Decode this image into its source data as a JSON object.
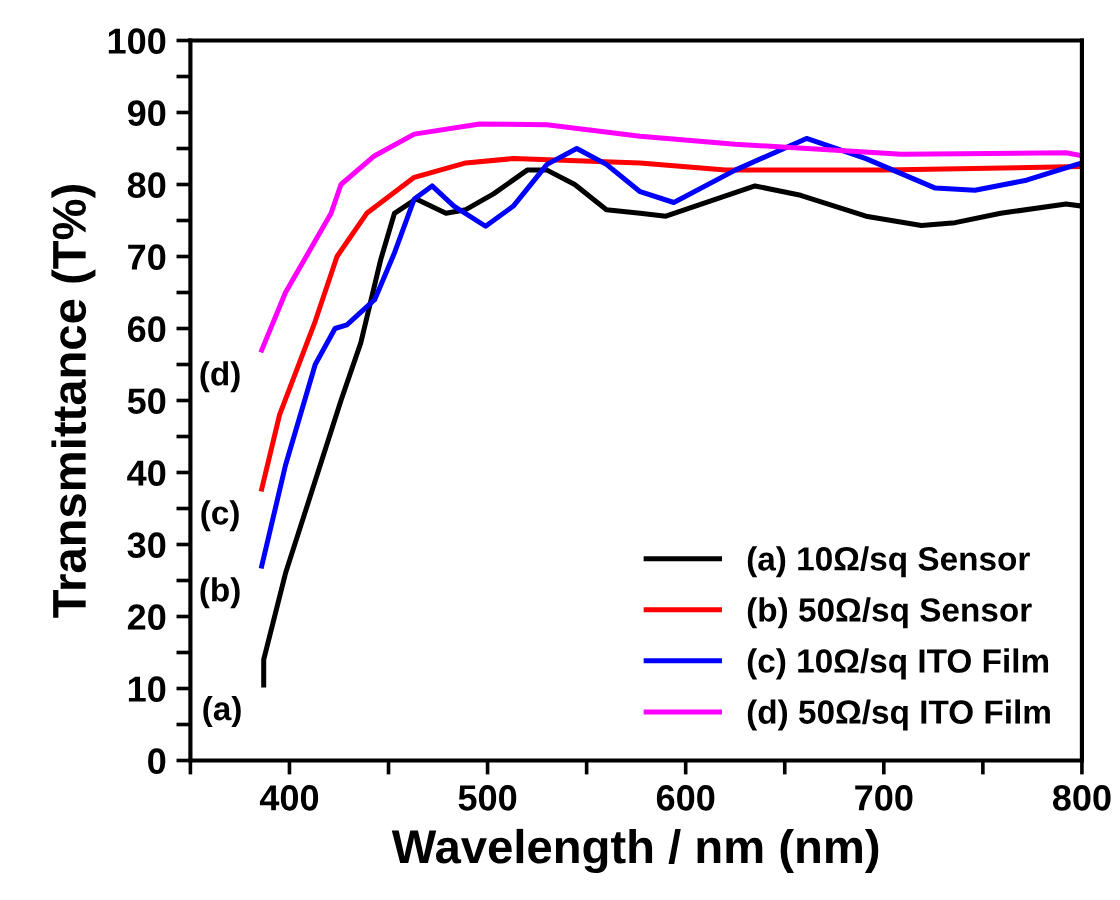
{
  "chart_data": {
    "type": "line",
    "xlabel": "Wavelength / nm (nm)",
    "ylabel": "Transmittance (T%)",
    "xlim": [
      350,
      800
    ],
    "ylim": [
      0,
      100
    ],
    "xticks": [
      {
        "value": 350,
        "label": null
      },
      400,
      {
        "value": 450,
        "label": null
      },
      500,
      {
        "value": 550,
        "label": null
      },
      600,
      {
        "value": 650,
        "label": null
      },
      700,
      {
        "value": 750,
        "label": null
      },
      800
    ],
    "yticks": [
      0,
      {
        "value": 5,
        "label": null
      },
      10,
      {
        "value": 15,
        "label": null
      },
      20,
      {
        "value": 25,
        "label": null
      },
      30,
      {
        "value": 35,
        "label": null
      },
      40,
      {
        "value": 45,
        "label": null
      },
      50,
      {
        "value": 55,
        "label": null
      },
      60,
      {
        "value": 65,
        "label": null
      },
      70,
      {
        "value": 75,
        "label": null
      },
      80,
      {
        "value": 85,
        "label": null
      },
      90,
      {
        "value": 95,
        "label": null
      },
      100
    ],
    "grid": false,
    "legend": "bottom right",
    "marker": "none",
    "line_style": "solid",
    "series": [
      {
        "name": "(a) 10Ω/sq Sensor",
        "color": "#000000",
        "x": [
          387,
          387,
          398,
          426,
          436,
          446,
          453,
          464,
          479,
          489,
          503,
          520,
          530,
          544,
          560,
          577,
          590,
          635,
          658,
          691,
          719,
          736,
          759,
          792,
          800
        ],
        "values": [
          10.5,
          14,
          26,
          50,
          58,
          69.5,
          76,
          78,
          76,
          76.5,
          78.7,
          82,
          82,
          80,
          76.5,
          76,
          75.6,
          79.8,
          78.5,
          75.6,
          74.3,
          74.7,
          76,
          77.3,
          77
        ]
      },
      {
        "name": "(b) 50Ω/sq Sensor",
        "color": "#ff0000",
        "x": [
          386,
          395,
          413,
          424,
          439,
          463,
          489,
          513,
          577,
          620,
          700,
          800
        ],
        "values": [
          37.7,
          48,
          61,
          70,
          76,
          81,
          83,
          83.6,
          83,
          82,
          82,
          82.5
        ]
      },
      {
        "name": "(c) 10Ω/sq ITO Film",
        "color": "#0000ff",
        "x": [
          386,
          398,
          413,
          423,
          429,
          443,
          453,
          463,
          472,
          483,
          499,
          513,
          530,
          545,
          560,
          577,
          594,
          625,
          661,
          691,
          726,
          746,
          772,
          800
        ],
        "values": [
          27,
          41,
          55,
          60,
          60.5,
          64,
          70.5,
          78,
          79.8,
          77,
          74.2,
          77,
          82.8,
          85,
          82.8,
          79,
          77.5,
          82,
          86.4,
          83.6,
          79.5,
          79.2,
          80.6,
          83
        ]
      },
      {
        "name": "(d) 50Ω/sq ITO Film",
        "color": "#ff00ff",
        "x": [
          386,
          398,
          421,
          426,
          443,
          463,
          496,
          530,
          577,
          625,
          709,
          792,
          800
        ],
        "values": [
          57,
          65,
          76,
          80,
          84,
          87,
          88.4,
          88.3,
          86.7,
          85.6,
          84.2,
          84.4,
          84
        ]
      }
    ],
    "annotations": [
      "(a)",
      "(b)",
      "(c)",
      "(d)"
    ]
  }
}
